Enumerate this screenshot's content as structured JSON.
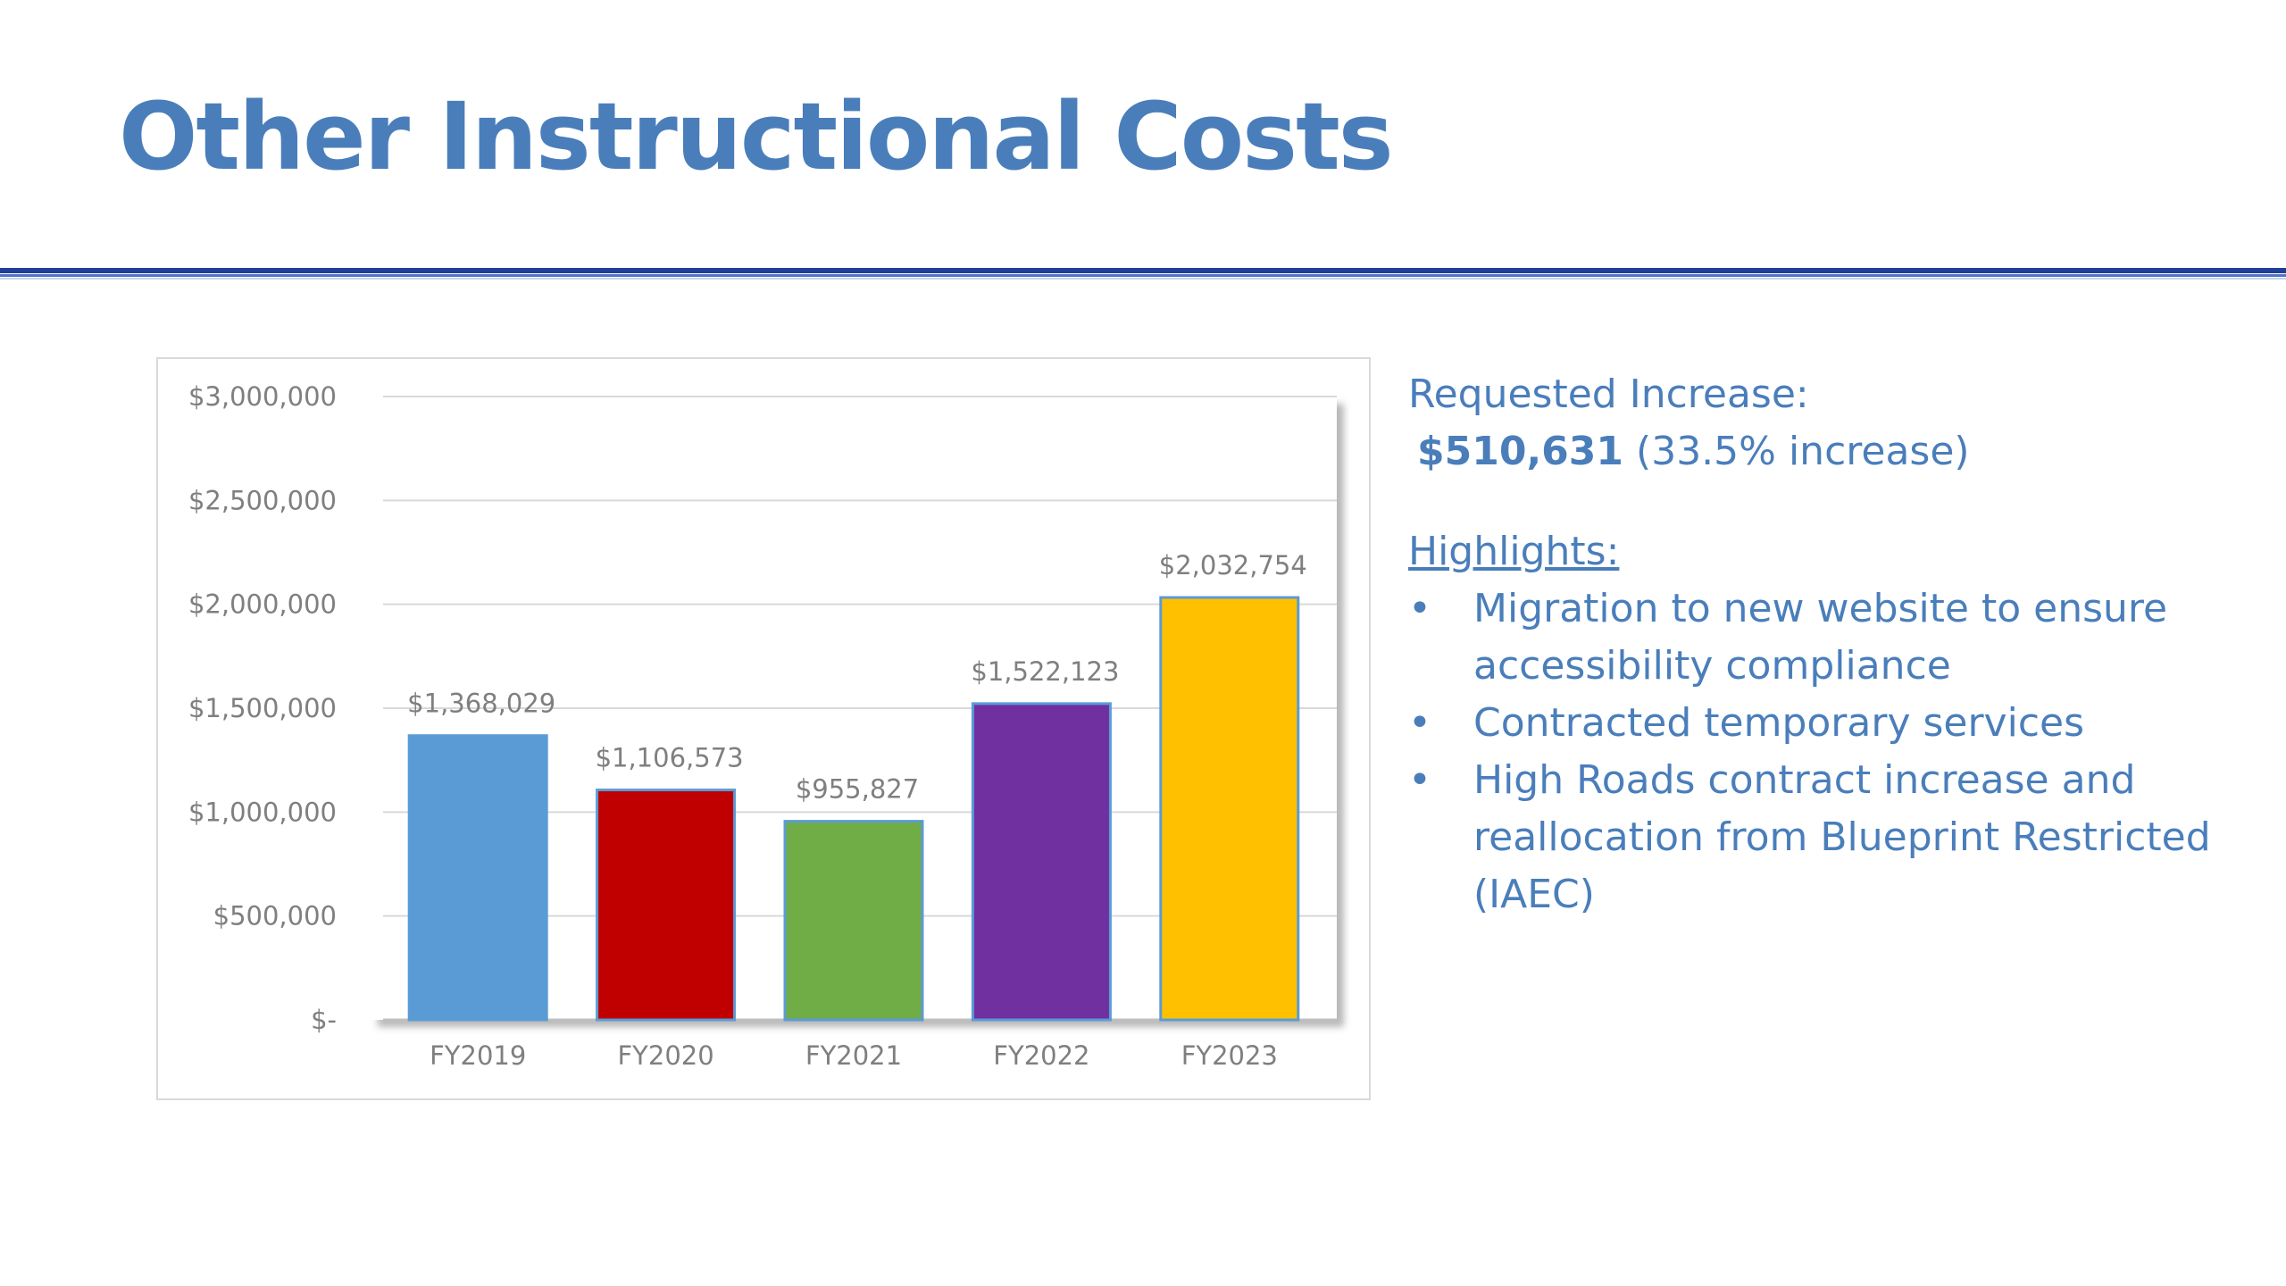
{
  "slide": {
    "title": "Other Instructional Costs"
  },
  "side_panel": {
    "requested_label": "Requested Increase:",
    "requested_amount": "$510,631",
    "requested_detail": "(33.5% increase)",
    "highlights_heading": "Highlights:",
    "highlights": [
      "Migration to new website to ensure accessibility compliance",
      "Contracted temporary services",
      "High Roads contract increase and reallocation from Blueprint Restricted (IAEC)"
    ]
  },
  "chart_data": {
    "type": "bar",
    "categories": [
      "FY2019",
      "FY2020",
      "FY2021",
      "FY2022",
      "FY2023"
    ],
    "values": [
      1368029,
      1106573,
      955827,
      1522123,
      2032754
    ],
    "data_labels": [
      "$1,368,029",
      "$1,106,573",
      "$955,827",
      "$1,522,123",
      "$2,032,754"
    ],
    "bar_colors": [
      "#5b9bd5",
      "#c00000",
      "#70ad47",
      "#7030a0",
      "#ffc000"
    ],
    "ylim": [
      0,
      3000000
    ],
    "yticks": [
      0,
      500000,
      1000000,
      1500000,
      2000000,
      2500000,
      3000000
    ],
    "ytick_labels": [
      "$-",
      "$500,000",
      "$1,000,000",
      "$1,500,000",
      "$2,000,000",
      "$2,500,000",
      "$3,000,000"
    ],
    "grid": true,
    "legend": "none"
  }
}
